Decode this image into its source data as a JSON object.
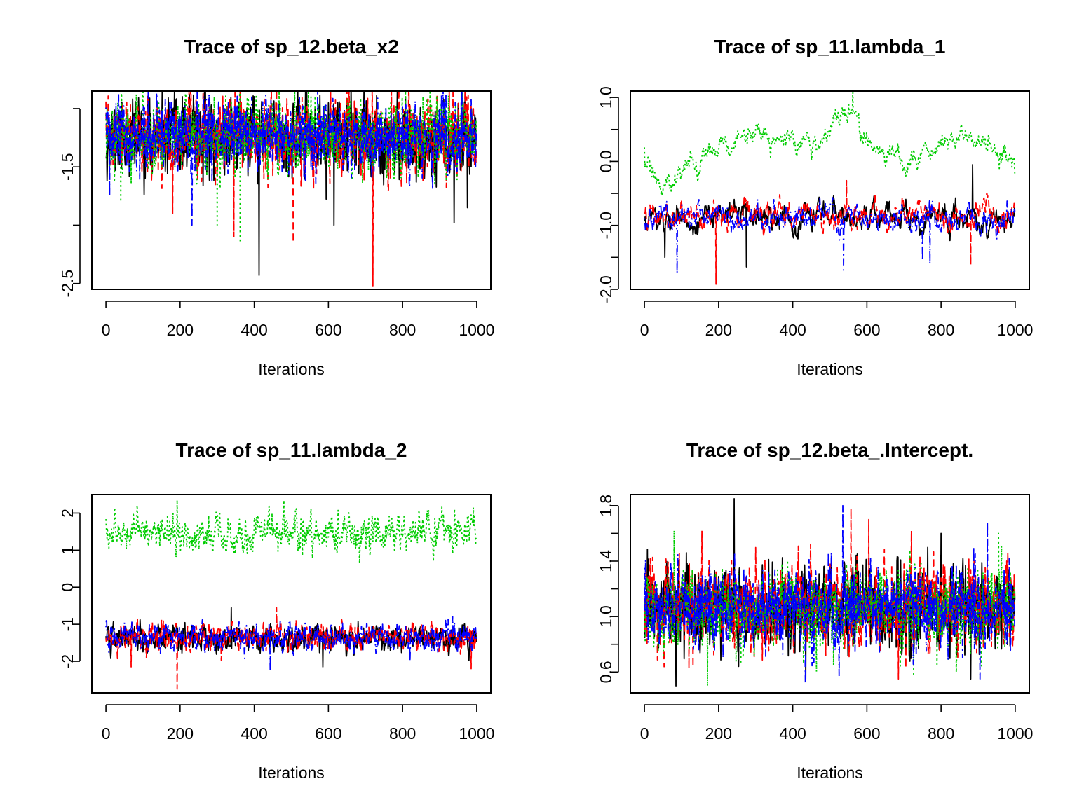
{
  "chart_data": [
    {
      "type": "line",
      "title": "Trace of sp_12.beta_x2",
      "xlabel": "Iterations",
      "ylabel": "",
      "xlim": [
        0,
        1000
      ],
      "ylim": [
        -2.55,
        -0.85
      ],
      "xticks": [
        0,
        200,
        400,
        600,
        800,
        1000
      ],
      "xtick_labels": [
        "0",
        "200",
        "400",
        "600",
        "800",
        "1000"
      ],
      "yticks": [
        -2.5,
        -2.0,
        -1.5,
        -1.0
      ],
      "ytick_labels": [
        "-2.5",
        "",
        "-1.5",
        ""
      ],
      "grid": false,
      "series": [
        {
          "color": "#000000",
          "linestyle": "solid",
          "center": -1.25,
          "sd": 0.16,
          "ar": 0.2,
          "drift": 0.0,
          "seed": 11,
          "spikes": [
            [
              413,
              -2.43
            ],
            [
              118,
              -0.91
            ],
            [
              188,
              -0.93
            ],
            [
              615,
              -2.0
            ],
            [
              939,
              -1.98
            ],
            [
              975,
              -1.85
            ]
          ]
        },
        {
          "color": "#ff0000",
          "linestyle": "dashed",
          "center": -1.25,
          "sd": 0.16,
          "ar": 0.2,
          "drift": 0.0,
          "seed": 23,
          "spikes": [
            [
              720,
              -2.52
            ],
            [
              113,
              -0.88
            ],
            [
              505,
              -2.15
            ],
            [
              427,
              -0.92
            ],
            [
              345,
              -2.1
            ],
            [
              180,
              -1.9
            ]
          ]
        },
        {
          "color": "#00cd00",
          "linestyle": "dotted",
          "center": -1.22,
          "sd": 0.15,
          "ar": 0.2,
          "drift": 0.0,
          "seed": 37,
          "spikes": [
            [
              362,
              -2.15
            ],
            [
              300,
              -2.0
            ],
            [
              553,
              -0.9
            ],
            [
              40,
              -1.8
            ],
            [
              470,
              -0.95
            ]
          ]
        },
        {
          "color": "#0000ff",
          "linestyle": "dashdot",
          "center": -1.25,
          "sd": 0.15,
          "ar": 0.2,
          "drift": 0.0,
          "seed": 51,
          "spikes": [
            [
              278,
              -0.88
            ],
            [
              905,
              -0.88
            ],
            [
              232,
              -2.0
            ],
            [
              958,
              -0.95
            ],
            [
              10,
              -1.75
            ]
          ]
        }
      ]
    },
    {
      "type": "line",
      "title": "Trace of sp_11.lambda_1",
      "xlabel": "Iterations",
      "ylabel": "",
      "xlim": [
        0,
        1000
      ],
      "ylim": [
        -2.0,
        1.1
      ],
      "xticks": [
        0,
        200,
        400,
        600,
        800,
        1000
      ],
      "xtick_labels": [
        "0",
        "200",
        "400",
        "600",
        "800",
        "1000"
      ],
      "yticks": [
        -2.0,
        -1.5,
        -1.0,
        -0.5,
        0.0,
        0.5,
        1.0
      ],
      "ytick_labels": [
        "-2.0",
        "",
        "-1.0",
        "",
        "0.0",
        "",
        "1.0"
      ],
      "grid": false,
      "series": [
        {
          "color": "#000000",
          "linestyle": "solid",
          "center": -0.9,
          "sd": 0.12,
          "ar": 0.85,
          "drift": 0.0,
          "seed": 61,
          "spikes": [
            [
              275,
              -1.65
            ],
            [
              885,
              -0.05
            ],
            [
              55,
              -1.5
            ]
          ]
        },
        {
          "color": "#ff0000",
          "linestyle": "dashed",
          "center": -0.85,
          "sd": 0.12,
          "ar": 0.85,
          "drift": 0.0,
          "seed": 73,
          "spikes": [
            [
              193,
              -1.92
            ],
            [
              545,
              -0.3
            ],
            [
              880,
              -1.62
            ]
          ]
        },
        {
          "color": "#00cd00",
          "linestyle": "dotted",
          "center": 0.25,
          "sd": 0.1,
          "ar": 0.85,
          "drift": 1.0,
          "seed": 89,
          "path": [
            [
              0,
              -0.1
            ],
            [
              50,
              -0.35
            ],
            [
              100,
              -0.25
            ],
            [
              150,
              0.0
            ],
            [
              200,
              0.25
            ],
            [
              250,
              0.35
            ],
            [
              300,
              0.45
            ],
            [
              350,
              0.4
            ],
            [
              400,
              0.35
            ],
            [
              450,
              0.25
            ],
            [
              500,
              0.5
            ],
            [
              560,
              0.75
            ],
            [
              600,
              0.35
            ],
            [
              650,
              0.1
            ],
            [
              700,
              0.05
            ],
            [
              750,
              0.05
            ],
            [
              800,
              0.2
            ],
            [
              850,
              0.35
            ],
            [
              900,
              0.3
            ],
            [
              950,
              0.2
            ],
            [
              1000,
              0.0
            ]
          ],
          "spikes": [
            [
              562,
              1.12
            ],
            [
              0,
              0.22
            ]
          ]
        },
        {
          "color": "#0000ff",
          "linestyle": "dashdot",
          "center": -0.9,
          "sd": 0.12,
          "ar": 0.85,
          "drift": 0.0,
          "seed": 97,
          "spikes": [
            [
              88,
              -1.75
            ],
            [
              537,
              -1.7
            ],
            [
              750,
              -1.55
            ],
            [
              770,
              -1.6
            ]
          ]
        }
      ]
    },
    {
      "type": "line",
      "title": "Trace of sp_11.lambda_2",
      "xlabel": "Iterations",
      "ylabel": "",
      "xlim": [
        0,
        1000
      ],
      "ylim": [
        -2.85,
        2.5
      ],
      "xticks": [
        0,
        200,
        400,
        600,
        800,
        1000
      ],
      "xtick_labels": [
        "0",
        "200",
        "400",
        "600",
        "800",
        "1000"
      ],
      "yticks": [
        -2,
        -1,
        0,
        1,
        2
      ],
      "ytick_labels": [
        "-2",
        "-1",
        "0",
        "1",
        "2"
      ],
      "grid": false,
      "series": [
        {
          "color": "#000000",
          "linestyle": "solid",
          "center": -1.35,
          "sd": 0.18,
          "ar": 0.55,
          "drift": 0.0,
          "seed": 101,
          "spikes": [
            [
              338,
              -0.55
            ],
            [
              585,
              -2.15
            ]
          ]
        },
        {
          "color": "#ff0000",
          "linestyle": "dashed",
          "center": -1.35,
          "sd": 0.18,
          "ar": 0.55,
          "drift": 0.0,
          "seed": 113,
          "spikes": [
            [
              192,
              -2.75
            ],
            [
              68,
              -2.15
            ],
            [
              460,
              -0.55
            ],
            [
              985,
              -2.2
            ]
          ]
        },
        {
          "color": "#00cd00",
          "linestyle": "dotted",
          "center": 1.5,
          "sd": 0.25,
          "ar": 0.6,
          "drift": 0.0,
          "seed": 127,
          "spikes": [
            [
              480,
              2.35
            ],
            [
              192,
              2.35
            ],
            [
              883,
              0.7
            ],
            [
              530,
              0.85
            ]
          ]
        },
        {
          "color": "#0000ff",
          "linestyle": "dashdot",
          "center": -1.35,
          "sd": 0.18,
          "ar": 0.55,
          "drift": 0.0,
          "seed": 131,
          "spikes": [
            [
              443,
              -2.25
            ],
            [
              820,
              -2.0
            ]
          ]
        }
      ]
    },
    {
      "type": "line",
      "title": "Trace of sp_12.beta_.Intercept.",
      "xlabel": "Iterations",
      "ylabel": "",
      "xlim": [
        0,
        1000
      ],
      "ylim": [
        0.45,
        1.88
      ],
      "xticks": [
        0,
        200,
        400,
        600,
        800,
        1000
      ],
      "xtick_labels": [
        "0",
        "200",
        "400",
        "600",
        "800",
        "1000"
      ],
      "yticks": [
        0.6,
        0.8,
        1.0,
        1.2,
        1.4,
        1.6,
        1.8
      ],
      "ytick_labels": [
        "0.6",
        "",
        "1.0",
        "",
        "1.4",
        "",
        "1.8"
      ],
      "grid": false,
      "series": [
        {
          "color": "#000000",
          "linestyle": "solid",
          "center": 1.07,
          "sd": 0.15,
          "ar": 0.2,
          "drift": 0.0,
          "seed": 141,
          "spikes": [
            [
              242,
              1.85
            ],
            [
              85,
              0.5
            ],
            [
              435,
              0.55
            ],
            [
              800,
              1.6
            ],
            [
              880,
              0.55
            ]
          ]
        },
        {
          "color": "#ff0000",
          "linestyle": "dashed",
          "center": 1.07,
          "sd": 0.15,
          "ar": 0.2,
          "drift": 0.0,
          "seed": 151,
          "spikes": [
            [
              557,
              1.78
            ],
            [
              605,
              1.7
            ],
            [
              685,
              0.55
            ],
            [
              720,
              1.62
            ],
            [
              155,
              1.62
            ]
          ]
        },
        {
          "color": "#00cd00",
          "linestyle": "dotted",
          "center": 1.05,
          "sd": 0.14,
          "ar": 0.2,
          "drift": 0.0,
          "seed": 163,
          "spikes": [
            [
              170,
              0.5
            ],
            [
              80,
              1.62
            ],
            [
              955,
              1.6
            ],
            [
              510,
              0.65
            ]
          ]
        },
        {
          "color": "#0000ff",
          "linestyle": "dashdot",
          "center": 1.07,
          "sd": 0.15,
          "ar": 0.2,
          "drift": 0.0,
          "seed": 173,
          "spikes": [
            [
              535,
              1.8
            ],
            [
              925,
              1.68
            ],
            [
              905,
              0.55
            ],
            [
              90,
              1.45
            ]
          ]
        }
      ]
    }
  ]
}
